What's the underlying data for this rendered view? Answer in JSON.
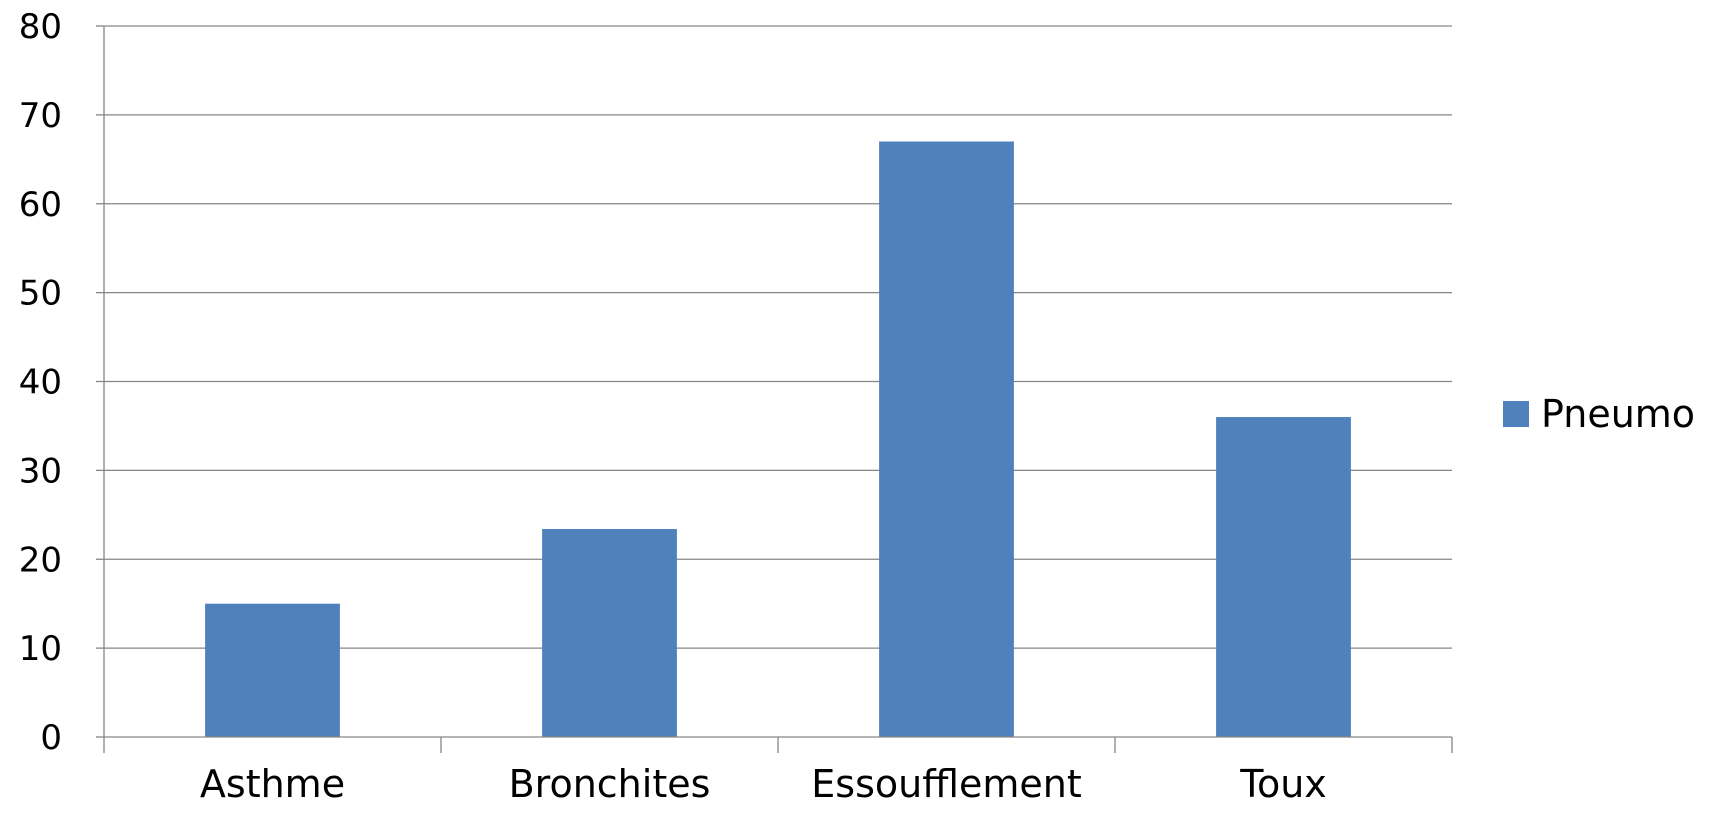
{
  "colors": {
    "series": "#4F81BD",
    "grid": "#868686",
    "axis": "#868686",
    "background": "#FFFFFF"
  },
  "chart_data": {
    "type": "bar",
    "title": "",
    "xlabel": "",
    "ylabel": "",
    "categories": [
      "Asthme",
      "Bronchites",
      "Essoufflement",
      "Toux"
    ],
    "series": [
      {
        "name": "Pneumo",
        "values": [
          15,
          23.4,
          67,
          36
        ]
      }
    ],
    "ylim": [
      0,
      80
    ],
    "yticks": [
      "0",
      "10",
      "20",
      "30",
      "40",
      "50",
      "60",
      "70",
      "80"
    ],
    "grid": true,
    "legend_position": "right"
  }
}
